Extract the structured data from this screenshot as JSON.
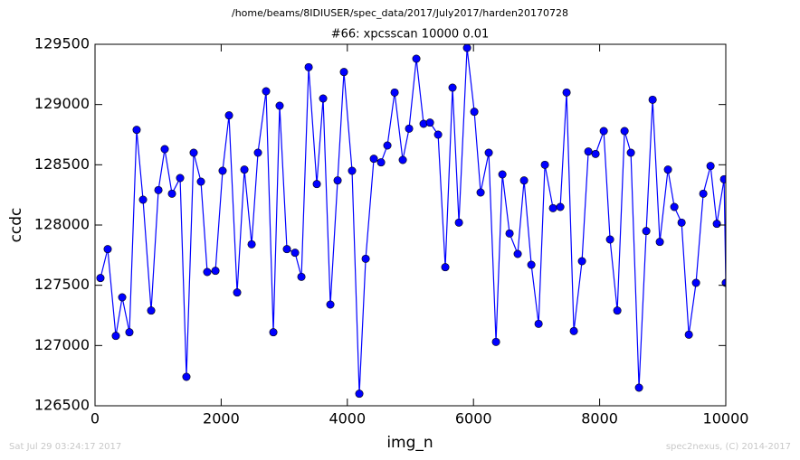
{
  "chart_data": {
    "type": "line",
    "title": "/home/beams/8IDIUSER/spec_data/2017/July2017/harden20170728",
    "subtitle": "#66: xpcsscan 10000 0.01",
    "x_label": "img_n",
    "y_label": "ccdc",
    "footer_left": "Sat Jul 29 03:24:17 2017",
    "footer_right": "spec2nexus, (C) 2014-2017",
    "x": [
      86,
      201,
      330,
      431,
      545,
      660,
      761,
      890,
      1005,
      1105,
      1220,
      1349,
      1449,
      1564,
      1679,
      1779,
      1909,
      2023,
      2124,
      2253,
      2368,
      2483,
      2583,
      2712,
      2827,
      2927,
      3042,
      3171,
      3272,
      3387,
      3516,
      3616,
      3731,
      3846,
      3946,
      4075,
      4190,
      4291,
      4420,
      4535,
      4635,
      4750,
      4879,
      4979,
      5094,
      5209,
      5310,
      5439,
      5553,
      5668,
      5769,
      5898,
      6013,
      6113,
      6242,
      6357,
      6458,
      6572,
      6701,
      6802,
      6917,
      7032,
      7132,
      7261,
      7376,
      7476,
      7591,
      7720,
      7821,
      7935,
      8065,
      8165,
      8280,
      8395,
      8495,
      8624,
      8739,
      8840,
      8954,
      9083,
      9184,
      9299,
      9414,
      9528,
      9643,
      9758,
      9858,
      9973,
      10000
    ],
    "series": [
      {
        "color": "#0000ff",
        "values": [
          127560,
          127800,
          127080,
          127400,
          127110,
          128790,
          128210,
          127290,
          128290,
          128630,
          128260,
          128390,
          126740,
          128600,
          128360,
          127610,
          127620,
          128450,
          128910,
          127440,
          128460,
          127840,
          128600,
          129110,
          127110,
          128990,
          127800,
          127770,
          127570,
          129310,
          128340,
          129050,
          127340,
          128370,
          129270,
          128450,
          126600,
          127720,
          128550,
          128520,
          128660,
          129100,
          128540,
          128800,
          129380,
          128840,
          128850,
          128750,
          127650,
          129140,
          128020,
          129470,
          128940,
          128270,
          128600,
          127030,
          128420,
          127930,
          127760,
          128370,
          127670,
          127180,
          128500,
          128140,
          128150,
          129100,
          127120,
          127700,
          128610,
          128590,
          128780,
          127880,
          127290,
          128780,
          128600,
          126650,
          127950,
          129040,
          127860,
          128460,
          128150,
          128020,
          127090,
          127520,
          128260,
          128490,
          128010,
          128380,
          127520
        ]
      }
    ],
    "xlim": [
      0,
      10000
    ],
    "ylim": [
      126500,
      129500
    ],
    "xticks": [
      0,
      2000,
      4000,
      6000,
      8000,
      10000
    ],
    "yticks": [
      126500,
      127000,
      127500,
      128000,
      128500,
      129000,
      129500
    ]
  }
}
